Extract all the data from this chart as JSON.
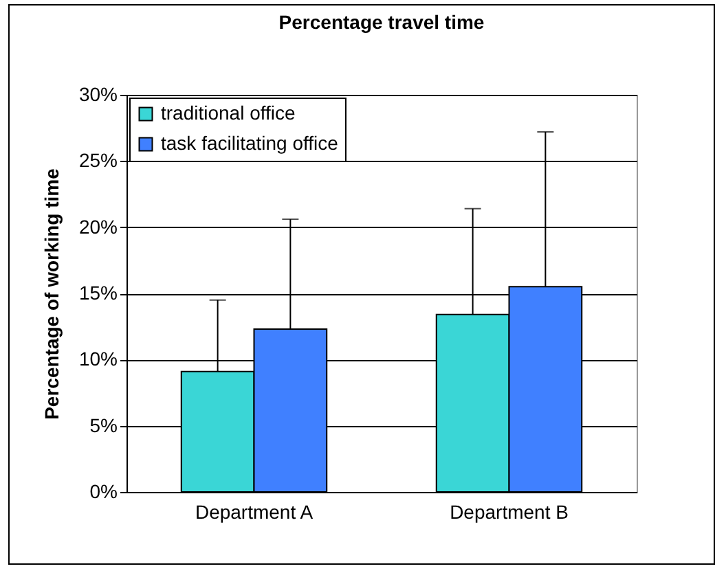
{
  "chart_data": {
    "type": "bar",
    "title": "Percentage travel time",
    "ylabel": "Percentage of working time",
    "categories": [
      "Department A",
      "Department B"
    ],
    "series": [
      {
        "name": "traditional office",
        "color": "#3ad6d6",
        "values": [
          9.1,
          13.4
        ],
        "errors": [
          [
            9.1,
            14.5
          ],
          [
            13.4,
            21.4
          ]
        ]
      },
      {
        "name": "task facilitating office",
        "color": "#4080ff",
        "values": [
          12.3,
          15.5
        ],
        "errors": [
          [
            12.3,
            20.6
          ],
          [
            15.5,
            27.2
          ]
        ]
      }
    ],
    "ylim": [
      0,
      30
    ],
    "yticks": [
      {
        "value": 0,
        "label": "0%"
      },
      {
        "value": 5,
        "label": "5%"
      },
      {
        "value": 10,
        "label": "10%"
      },
      {
        "value": 15,
        "label": "15%"
      },
      {
        "value": 20,
        "label": "20%"
      },
      {
        "value": 25,
        "label": "25%"
      },
      {
        "value": 30,
        "label": "30%"
      }
    ],
    "grid": "y",
    "legend": "top left"
  }
}
